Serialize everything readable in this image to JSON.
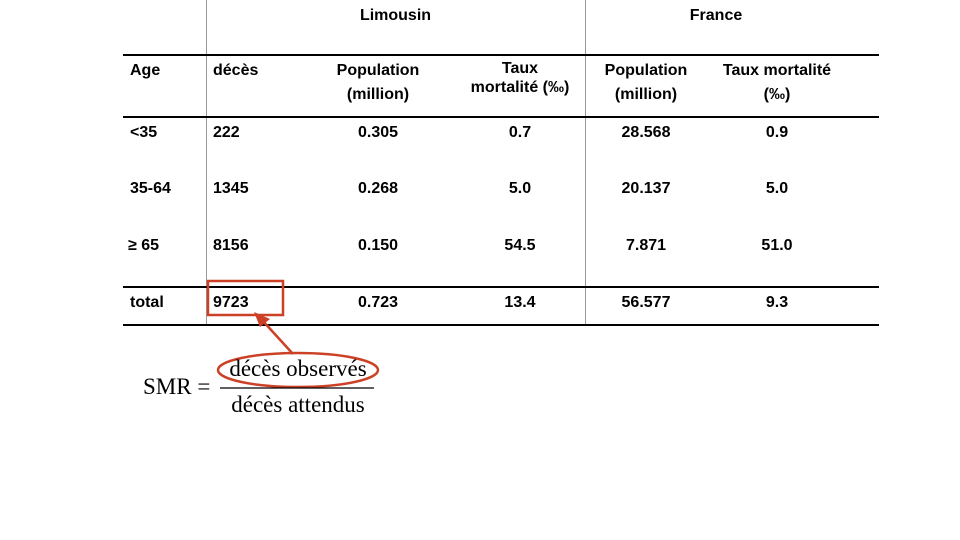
{
  "table": {
    "groups": [
      "Limousin",
      "France"
    ],
    "headers": {
      "age": "Age",
      "deces": "décès",
      "pop_l_1": "Population",
      "pop_l_2": "(million)",
      "taux_l_1": "Taux",
      "taux_l_2": "mortalité (‰)",
      "pop_f_1": "Population",
      "pop_f_2": "(million)",
      "taux_f_1": "Taux mortalité",
      "taux_f_2": "(‰)"
    },
    "rows": [
      {
        "age": "<35",
        "deces": "222",
        "pop_l": "0.305",
        "taux_l": "0.7",
        "pop_f": "28.568",
        "taux_f": "0.9"
      },
      {
        "age": "35-64",
        "deces": "1345",
        "pop_l": "0.268",
        "taux_l": "5.0",
        "pop_f": "20.137",
        "taux_f": "5.0"
      },
      {
        "age": "≥ 65",
        "deces": "8156",
        "pop_l": "0.150",
        "taux_l": "54.5",
        "pop_f": "7.871",
        "taux_f": "51.0"
      }
    ],
    "total": {
      "age": "total",
      "deces": "9723",
      "pop_l": "0.723",
      "taux_l": "13.4",
      "pop_f": "56.577",
      "taux_f": "9.3"
    }
  },
  "formula": {
    "lhs": "SMR =",
    "numerator": "décès observés",
    "denominator": "décès attendus"
  },
  "colors": {
    "highlight": "#cc4125",
    "rule": "#000000",
    "divider": "#9a9a9a"
  }
}
